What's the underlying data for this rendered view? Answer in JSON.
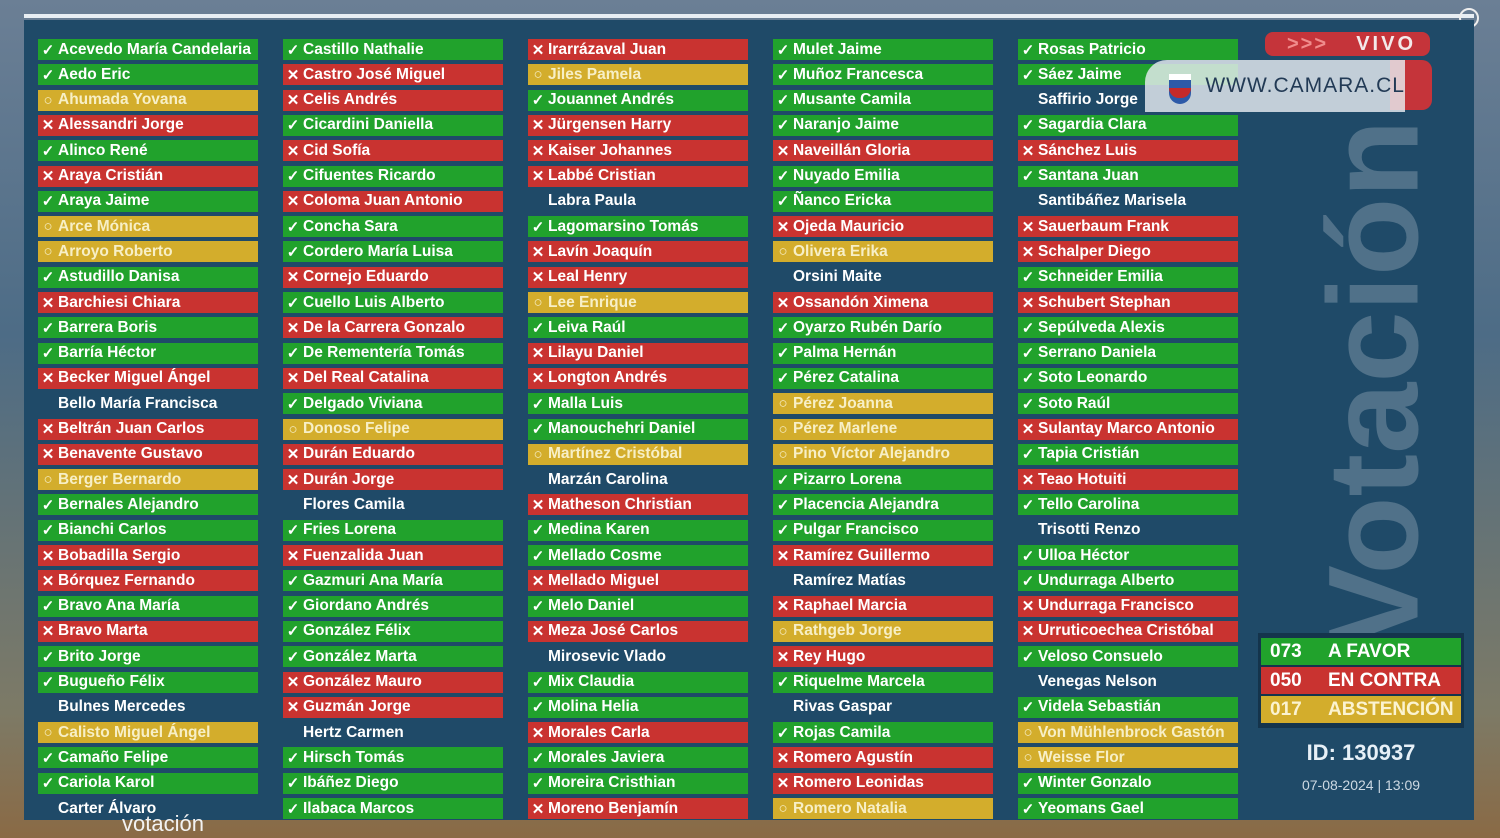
{
  "header": {
    "live_label": "VIVO",
    "live_arrows": ">>>",
    "site": "WWW.CAMARA.CL",
    "watermark": "Votación"
  },
  "colors": {
    "a_favor": "#21a22c",
    "en_contra": "#c93330",
    "abstencion": "#d3ad2c",
    "board": "#1f4a68"
  },
  "icons": {
    "y": "check-icon",
    "n": "x-icon",
    "a": "circle-icon"
  },
  "tally": [
    {
      "count": "073",
      "label": "A FAVOR",
      "vote": "y"
    },
    {
      "count": "050",
      "label": "EN CONTRA",
      "vote": "n"
    },
    {
      "count": "017",
      "label": "ABSTENCIÓN",
      "vote": "a"
    }
  ],
  "vote_id": "ID: 130937",
  "vote_date": "07-08-2024  |  13:09",
  "caption": "votación",
  "columns": [
    [
      {
        "name": "Acevedo María Candelaria",
        "vote": "y"
      },
      {
        "name": "Aedo Eric",
        "vote": "y"
      },
      {
        "name": "Ahumada Yovana",
        "vote": "a"
      },
      {
        "name": "Alessandri Jorge",
        "vote": "n"
      },
      {
        "name": "Alinco René",
        "vote": "y"
      },
      {
        "name": "Araya Cristián",
        "vote": "n"
      },
      {
        "name": "Araya Jaime",
        "vote": "y"
      },
      {
        "name": "Arce Mónica",
        "vote": "a"
      },
      {
        "name": "Arroyo Roberto",
        "vote": "a"
      },
      {
        "name": "Astudillo Danisa",
        "vote": "y"
      },
      {
        "name": "Barchiesi Chiara",
        "vote": "n"
      },
      {
        "name": "Barrera Boris",
        "vote": "y"
      },
      {
        "name": "Barría Héctor",
        "vote": "y"
      },
      {
        "name": "Becker Miguel Ángel",
        "vote": "n"
      },
      {
        "name": "Bello María Francisca",
        "vote": ""
      },
      {
        "name": "Beltrán Juan Carlos",
        "vote": "n"
      },
      {
        "name": "Benavente Gustavo",
        "vote": "n"
      },
      {
        "name": "Berger Bernardo",
        "vote": "a"
      },
      {
        "name": "Bernales Alejandro",
        "vote": "y"
      },
      {
        "name": "Bianchi Carlos",
        "vote": "y"
      },
      {
        "name": "Bobadilla Sergio",
        "vote": "n"
      },
      {
        "name": "Bórquez Fernando",
        "vote": "n"
      },
      {
        "name": "Bravo Ana María",
        "vote": "y"
      },
      {
        "name": "Bravo Marta",
        "vote": "n"
      },
      {
        "name": "Brito Jorge",
        "vote": "y"
      },
      {
        "name": "Bugueño Félix",
        "vote": "y"
      },
      {
        "name": "Bulnes Mercedes",
        "vote": ""
      },
      {
        "name": "Calisto Miguel Ángel",
        "vote": "a"
      },
      {
        "name": "Camaño Felipe",
        "vote": "y"
      },
      {
        "name": "Cariola Karol",
        "vote": "y"
      },
      {
        "name": "Carter Álvaro",
        "vote": ""
      }
    ],
    [
      {
        "name": "Castillo Nathalie",
        "vote": "y"
      },
      {
        "name": "Castro José Miguel",
        "vote": "n"
      },
      {
        "name": "Celis Andrés",
        "vote": "n"
      },
      {
        "name": "Cicardini Daniella",
        "vote": "y"
      },
      {
        "name": "Cid Sofía",
        "vote": "n"
      },
      {
        "name": "Cifuentes Ricardo",
        "vote": "y"
      },
      {
        "name": "Coloma Juan Antonio",
        "vote": "n"
      },
      {
        "name": "Concha Sara",
        "vote": "y"
      },
      {
        "name": "Cordero María Luisa",
        "vote": "y"
      },
      {
        "name": "Cornejo Eduardo",
        "vote": "n"
      },
      {
        "name": "Cuello Luis Alberto",
        "vote": "y"
      },
      {
        "name": "De la Carrera Gonzalo",
        "vote": "n"
      },
      {
        "name": "De Rementería Tomás",
        "vote": "y"
      },
      {
        "name": "Del Real Catalina",
        "vote": "n"
      },
      {
        "name": "Delgado Viviana",
        "vote": "y"
      },
      {
        "name": "Donoso Felipe",
        "vote": "a"
      },
      {
        "name": "Durán Eduardo",
        "vote": "n"
      },
      {
        "name": "Durán Jorge",
        "vote": "n"
      },
      {
        "name": "Flores Camila",
        "vote": ""
      },
      {
        "name": "Fries Lorena",
        "vote": "y"
      },
      {
        "name": "Fuenzalida Juan",
        "vote": "n"
      },
      {
        "name": "Gazmuri Ana María",
        "vote": "y"
      },
      {
        "name": "Giordano Andrés",
        "vote": "y"
      },
      {
        "name": "González Félix",
        "vote": "y"
      },
      {
        "name": "González Marta",
        "vote": "y"
      },
      {
        "name": "González Mauro",
        "vote": "n"
      },
      {
        "name": "Guzmán Jorge",
        "vote": "n"
      },
      {
        "name": "Hertz Carmen",
        "vote": ""
      },
      {
        "name": "Hirsch Tomás",
        "vote": "y"
      },
      {
        "name": "Ibáñez Diego",
        "vote": "y"
      },
      {
        "name": "Ilabaca Marcos",
        "vote": "y"
      }
    ],
    [
      {
        "name": "Irarrázaval Juan",
        "vote": "n"
      },
      {
        "name": "Jiles Pamela",
        "vote": "a"
      },
      {
        "name": "Jouannet Andrés",
        "vote": "y"
      },
      {
        "name": "Jürgensen Harry",
        "vote": "n"
      },
      {
        "name": "Kaiser Johannes",
        "vote": "n"
      },
      {
        "name": "Labbé Cristian",
        "vote": "n"
      },
      {
        "name": "Labra Paula",
        "vote": ""
      },
      {
        "name": "Lagomarsino Tomás",
        "vote": "y"
      },
      {
        "name": "Lavín Joaquín",
        "vote": "n"
      },
      {
        "name": "Leal Henry",
        "vote": "n"
      },
      {
        "name": "Lee Enrique",
        "vote": "a"
      },
      {
        "name": "Leiva Raúl",
        "vote": "y"
      },
      {
        "name": "Lilayu Daniel",
        "vote": "n"
      },
      {
        "name": "Longton Andrés",
        "vote": "n"
      },
      {
        "name": "Malla Luis",
        "vote": "y"
      },
      {
        "name": "Manouchehri Daniel",
        "vote": "y"
      },
      {
        "name": "Martínez Cristóbal",
        "vote": "a"
      },
      {
        "name": "Marzán Carolina",
        "vote": ""
      },
      {
        "name": "Matheson Christian",
        "vote": "n"
      },
      {
        "name": "Medina Karen",
        "vote": "y"
      },
      {
        "name": "Mellado Cosme",
        "vote": "y"
      },
      {
        "name": "Mellado Miguel",
        "vote": "n"
      },
      {
        "name": "Melo Daniel",
        "vote": "y"
      },
      {
        "name": "Meza José Carlos",
        "vote": "n"
      },
      {
        "name": "Mirosevic Vlado",
        "vote": ""
      },
      {
        "name": "Mix Claudia",
        "vote": "y"
      },
      {
        "name": "Molina Helia",
        "vote": "y"
      },
      {
        "name": "Morales Carla",
        "vote": "n"
      },
      {
        "name": "Morales Javiera",
        "vote": "y"
      },
      {
        "name": "Moreira Cristhian",
        "vote": "y"
      },
      {
        "name": "Moreno Benjamín",
        "vote": "n"
      }
    ],
    [
      {
        "name": "Mulet Jaime",
        "vote": "y"
      },
      {
        "name": "Muñoz Francesca",
        "vote": "y"
      },
      {
        "name": "Musante Camila",
        "vote": "y"
      },
      {
        "name": "Naranjo Jaime",
        "vote": "y"
      },
      {
        "name": "Naveillán Gloria",
        "vote": "n"
      },
      {
        "name": "Nuyado Emilia",
        "vote": "y"
      },
      {
        "name": "Ñanco Ericka",
        "vote": "y"
      },
      {
        "name": "Ojeda Mauricio",
        "vote": "n"
      },
      {
        "name": "Olivera Erika",
        "vote": "a"
      },
      {
        "name": "Orsini Maite",
        "vote": ""
      },
      {
        "name": "Ossandón Ximena",
        "vote": "n"
      },
      {
        "name": "Oyarzo Rubén Darío",
        "vote": "y"
      },
      {
        "name": "Palma Hernán",
        "vote": "y"
      },
      {
        "name": "Pérez Catalina",
        "vote": "y"
      },
      {
        "name": "Pérez Joanna",
        "vote": "a"
      },
      {
        "name": "Pérez Marlene",
        "vote": "a"
      },
      {
        "name": "Pino Víctor Alejandro",
        "vote": "a"
      },
      {
        "name": "Pizarro Lorena",
        "vote": "y"
      },
      {
        "name": "Placencia Alejandra",
        "vote": "y"
      },
      {
        "name": "Pulgar Francisco",
        "vote": "y"
      },
      {
        "name": "Ramírez Guillermo",
        "vote": "n"
      },
      {
        "name": "Ramírez Matías",
        "vote": ""
      },
      {
        "name": "Raphael Marcia",
        "vote": "n"
      },
      {
        "name": "Rathgeb Jorge",
        "vote": "a"
      },
      {
        "name": "Rey Hugo",
        "vote": "n"
      },
      {
        "name": "Riquelme Marcela",
        "vote": "y"
      },
      {
        "name": "Rivas Gaspar",
        "vote": ""
      },
      {
        "name": "Rojas Camila",
        "vote": "y"
      },
      {
        "name": "Romero Agustín",
        "vote": "n"
      },
      {
        "name": "Romero Leonidas",
        "vote": "n"
      },
      {
        "name": "Romero Natalia",
        "vote": "a"
      }
    ],
    [
      {
        "name": "Rosas Patricio",
        "vote": "y"
      },
      {
        "name": "Sáez Jaime",
        "vote": "y"
      },
      {
        "name": "Saffirio Jorge",
        "vote": ""
      },
      {
        "name": "Sagardia Clara",
        "vote": "y"
      },
      {
        "name": "Sánchez Luis",
        "vote": "n"
      },
      {
        "name": "Santana Juan",
        "vote": "y"
      },
      {
        "name": "Santibáñez Marisela",
        "vote": ""
      },
      {
        "name": "Sauerbaum Frank",
        "vote": "n"
      },
      {
        "name": "Schalper Diego",
        "vote": "n"
      },
      {
        "name": "Schneider Emilia",
        "vote": "y"
      },
      {
        "name": "Schubert Stephan",
        "vote": "n"
      },
      {
        "name": "Sepúlveda Alexis",
        "vote": "y"
      },
      {
        "name": "Serrano Daniela",
        "vote": "y"
      },
      {
        "name": "Soto Leonardo",
        "vote": "y"
      },
      {
        "name": "Soto Raúl",
        "vote": "y"
      },
      {
        "name": "Sulantay Marco Antonio",
        "vote": "n"
      },
      {
        "name": "Tapia Cristián",
        "vote": "y"
      },
      {
        "name": "Teao Hotuiti",
        "vote": "n"
      },
      {
        "name": "Tello Carolina",
        "vote": "y"
      },
      {
        "name": "Trisotti Renzo",
        "vote": ""
      },
      {
        "name": "Ulloa Héctor",
        "vote": "y"
      },
      {
        "name": "Undurraga Alberto",
        "vote": "y"
      },
      {
        "name": "Undurraga Francisco",
        "vote": "n"
      },
      {
        "name": "Urruticoechea Cristóbal",
        "vote": "n"
      },
      {
        "name": "Veloso Consuelo",
        "vote": "y"
      },
      {
        "name": "Venegas Nelson",
        "vote": ""
      },
      {
        "name": "Videla Sebastián",
        "vote": "y"
      },
      {
        "name": "Von Mühlenbrock Gastón",
        "vote": "a"
      },
      {
        "name": "Weisse Flor",
        "vote": "a"
      },
      {
        "name": "Winter Gonzalo",
        "vote": "y"
      },
      {
        "name": "Yeomans Gael",
        "vote": "y"
      }
    ]
  ]
}
